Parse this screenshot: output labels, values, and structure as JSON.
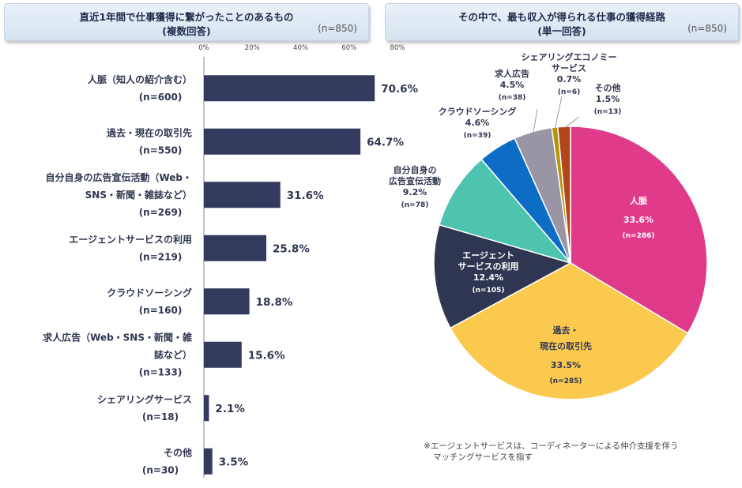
{
  "left_panel": {
    "title_line1": "直近1年間で仕事獲得に繋がったことのあるもの",
    "title_line2": "(複数回答)",
    "sample": "(n=850)"
  },
  "right_panel": {
    "title_line1": "その中で、最も収入が得られる仕事の獲得経路",
    "title_line2": "(単一回答)",
    "sample": "(n=850)"
  },
  "footnote_line1": "※エージェントサービスは、コーディネーターによる仲介支援を伴う",
  "footnote_line2": "マッチングサービスを指す",
  "chart_data": [
    {
      "type": "bar",
      "orientation": "horizontal",
      "unit": "%",
      "xlim": [
        0,
        80
      ],
      "ticks": [
        "0%",
        "20%",
        "40%",
        "60%",
        "80%"
      ],
      "grid": false,
      "bar_color": "#343a5e",
      "categories": [
        {
          "lines": [
            "人脈（知人の紹介含む）",
            "(n=600)"
          ],
          "value": 70.6,
          "label": "70.6%"
        },
        {
          "lines": [
            "過去・現在の取引先",
            "(n=550)"
          ],
          "value": 64.7,
          "label": "64.7%"
        },
        {
          "lines": [
            "自分自身の広告宣伝活動（Web・",
            "SNS・新聞・雑誌など）",
            "(n=269)"
          ],
          "value": 31.6,
          "label": "31.6%"
        },
        {
          "lines": [
            "エージェントサービスの利用",
            "(n=219)"
          ],
          "value": 25.8,
          "label": "25.8%"
        },
        {
          "lines": [
            "クラウドソーシング",
            "(n=160)"
          ],
          "value": 18.8,
          "label": "18.8%"
        },
        {
          "lines": [
            "求人広告（Web・SNS・新聞・雑",
            "誌など）",
            "(n=133)"
          ],
          "value": 15.6,
          "label": "15.6%"
        },
        {
          "lines": [
            "シェアリングサービス",
            "(n=18)"
          ],
          "value": 2.1,
          "label": "2.1%"
        },
        {
          "lines": [
            "その他",
            "(n=30)"
          ],
          "value": 3.5,
          "label": "3.5%"
        }
      ]
    },
    {
      "type": "pie",
      "unit": "%",
      "slices": [
        {
          "name": [
            "人脈"
          ],
          "value": 33.6,
          "label": "33.6%",
          "n": "(n=286)",
          "color": "#e03a8a"
        },
        {
          "name": [
            "過去・",
            "現在の取引先"
          ],
          "value": 33.5,
          "label": "33.5%",
          "n": "(n=285)",
          "color": "#fcc94f"
        },
        {
          "name": [
            "エージェント",
            "サービスの利用"
          ],
          "value": 12.4,
          "label": "12.4%",
          "n": "(n=105)",
          "color": "#2f3651"
        },
        {
          "name": [
            "自分自身の",
            "広告宣伝活動"
          ],
          "value": 9.2,
          "label": "9.2%",
          "n": "(n=78)",
          "color": "#4dc3b0"
        },
        {
          "name": [
            "クラウドソーシング"
          ],
          "value": 4.6,
          "label": "4.6%",
          "n": "(n=39)",
          "color": "#0d6cc4"
        },
        {
          "name": [
            "求人広告"
          ],
          "value": 4.5,
          "label": "4.5%",
          "n": "(n=38)",
          "color": "#9a95a5"
        },
        {
          "name": [
            "シェアリングエコノミー",
            "サービス"
          ],
          "value": 0.7,
          "label": "0.7%",
          "n": "(n=6)",
          "color": "#b8940a"
        },
        {
          "name": [
            "その他"
          ],
          "value": 1.5,
          "label": "1.5%",
          "n": "(n=13)",
          "color": "#b0461a"
        }
      ]
    }
  ]
}
